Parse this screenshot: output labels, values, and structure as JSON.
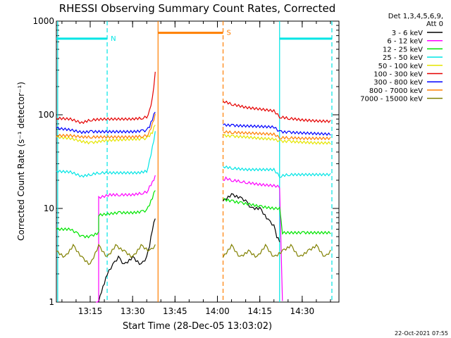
{
  "chart_data": {
    "type": "line",
    "title": "RHESSI Observing Summary Count Rates, Corrected",
    "xlabel": "Start Time (28-Dec-05 13:03:02)",
    "ylabel": "Corrected Count Rate (s⁻¹ detector⁻¹)",
    "y_scale": "log",
    "ylim": [
      1,
      1000
    ],
    "xlim": [
      "13:03:02",
      "14:43:00"
    ],
    "y_tick_labels": [
      "1",
      "10",
      "100",
      "1000"
    ],
    "x_tick_labels": [
      "13:15",
      "13:30",
      "13:45",
      "14:00",
      "14:15",
      "14:30"
    ],
    "legend_position": "right",
    "legend_header": [
      "Det 1,3,4,5,6,9,",
      "Att 0"
    ],
    "footer_date": "22-Oct-2021 07:55",
    "annotations": [
      {
        "label": "N",
        "color": "#00e5e5",
        "time_start": "13:03:02",
        "time_end": "13:21:00",
        "y": 650
      },
      {
        "label": "S",
        "color": "#ff7f00",
        "time_start": "13:39:00",
        "time_end": "14:02:00",
        "y": 750
      },
      {
        "label": "",
        "color": "#00e5e5",
        "time_start": "14:22:00",
        "time_end": "14:40:30",
        "y": 650
      }
    ],
    "vlines": [
      {
        "time": "13:03:30",
        "color": "#00e5e5",
        "style": "solid"
      },
      {
        "time": "13:21:00",
        "color": "#00e5e5",
        "style": "dashed"
      },
      {
        "time": "13:39:00",
        "color": "#ff7f00",
        "style": "solid"
      },
      {
        "time": "14:02:00",
        "color": "#ff7f00",
        "style": "dashed"
      },
      {
        "time": "14:22:00",
        "color": "#00e5e5",
        "style": "solid"
      },
      {
        "time": "14:40:30",
        "color": "#00e5e5",
        "style": "dashed"
      }
    ],
    "gap": {
      "start": "13:39:00",
      "end": "14:02:00"
    },
    "series": [
      {
        "name": "3 - 6 keV",
        "color": "#000000",
        "x": [
          "13:18",
          "13:19",
          "13:20",
          "13:21",
          "13:23",
          "13:25",
          "13:27",
          "13:30",
          "13:33",
          "13:35",
          "13:36",
          "13:37",
          "13:38",
          "14:02",
          "14:05",
          "14:08",
          "14:10",
          "14:12",
          "14:15",
          "14:18",
          "14:20",
          "14:21",
          "14:22"
        ],
        "y": [
          1,
          1.3,
          1.6,
          2,
          2.5,
          3,
          2.5,
          3,
          2.5,
          3,
          4,
          6,
          8,
          12,
          14,
          13,
          12,
          10,
          10,
          7.5,
          6.5,
          5,
          4.5
        ]
      },
      {
        "name": "6 - 12 keV",
        "color": "#ff00ff",
        "x": [
          "13:17",
          "13:18",
          "13:18",
          "13:22",
          "13:25",
          "13:30",
          "13:33",
          "13:35",
          "13:36",
          "13:37",
          "13:38",
          "14:02",
          "14:03",
          "14:05",
          "14:08",
          "14:10",
          "14:15",
          "14:20",
          "14:22",
          "14:23"
        ],
        "y": [
          1,
          1,
          13,
          14,
          14,
          14,
          14.5,
          15,
          17,
          19,
          22,
          20,
          21,
          20,
          19.5,
          19,
          18,
          17.5,
          17,
          1
        ]
      },
      {
        "name": "12 - 25 keV",
        "color": "#00e500",
        "x": [
          "13:03",
          "13:08",
          "13:10",
          "13:12",
          "13:15",
          "13:18",
          "13:18",
          "13:25",
          "13:30",
          "13:33",
          "13:35",
          "13:36",
          "13:37",
          "13:38",
          "14:02",
          "14:05",
          "14:08",
          "14:12",
          "14:15",
          "14:20",
          "14:22",
          "14:23",
          "14:30",
          "14:35",
          "14:40"
        ],
        "y": [
          6,
          6,
          5.5,
          5,
          5,
          5.5,
          8.5,
          9,
          9,
          9.2,
          9.5,
          11,
          13,
          16,
          12.5,
          12,
          11.5,
          11,
          10.5,
          10,
          10,
          5.5,
          5.5,
          5.5,
          5.5
        ]
      },
      {
        "name": "25 - 50 keV",
        "color": "#00e5e5",
        "x": [
          "13:03",
          "13:08",
          "13:12",
          "13:15",
          "13:18",
          "13:22",
          "13:27",
          "13:32",
          "13:35",
          "13:36",
          "13:37",
          "13:38",
          "14:02",
          "14:05",
          "14:10",
          "14:15",
          "14:20",
          "14:22",
          "14:25",
          "14:30",
          "14:35",
          "14:40"
        ],
        "y": [
          25,
          24.5,
          22,
          23,
          24,
          24,
          24,
          24,
          25,
          32,
          45,
          65,
          28,
          27,
          26,
          26,
          26,
          22,
          23,
          23,
          23,
          23
        ]
      },
      {
        "name": "50 - 100 keV",
        "color": "#e5e500",
        "x": [
          "13:03",
          "13:08",
          "13:12",
          "13:15",
          "13:20",
          "13:25",
          "13:30",
          "13:33",
          "13:35",
          "13:36",
          "13:37",
          "13:38",
          "14:02",
          "14:05",
          "14:10",
          "14:15",
          "14:20",
          "14:22",
          "14:25",
          "14:30",
          "14:35",
          "14:40"
        ],
        "y": [
          58,
          56,
          52,
          50,
          53,
          54,
          55,
          55,
          56,
          60,
          65,
          80,
          60,
          59,
          58,
          56,
          55,
          52,
          52,
          51,
          50,
          50
        ]
      },
      {
        "name": "100 - 300 keV",
        "color": "#e50000",
        "x": [
          "13:03",
          "13:08",
          "13:12",
          "13:15",
          "13:20",
          "13:25",
          "13:30",
          "13:33",
          "13:35",
          "13:36",
          "13:37",
          "13:38",
          "14:02",
          "14:05",
          "14:10",
          "14:15",
          "14:20",
          "14:22",
          "14:25",
          "14:30",
          "14:35",
          "14:40"
        ],
        "y": [
          92,
          90,
          82,
          88,
          90,
          90,
          90,
          92,
          95,
          110,
          150,
          280,
          140,
          130,
          120,
          115,
          110,
          95,
          92,
          88,
          86,
          85
        ]
      },
      {
        "name": "300 - 800 keV",
        "color": "#0000ff",
        "x": [
          "13:03",
          "13:08",
          "13:12",
          "13:15",
          "13:20",
          "13:25",
          "13:30",
          "13:33",
          "13:35",
          "13:36",
          "13:37",
          "13:38",
          "14:02",
          "14:05",
          "14:10",
          "14:15",
          "14:20",
          "14:22",
          "14:25",
          "14:30",
          "14:35",
          "14:40"
        ],
        "y": [
          72,
          69,
          65,
          66,
          66,
          66,
          66,
          67,
          68,
          75,
          90,
          110,
          78,
          77,
          76,
          75,
          74,
          66,
          65,
          64,
          63,
          62
        ]
      },
      {
        "name": "800 - 7000 keV",
        "color": "#ff7f00",
        "x": [
          "13:03",
          "13:08",
          "13:12",
          "13:15",
          "13:20",
          "13:25",
          "13:30",
          "13:33",
          "13:35",
          "13:36",
          "13:37",
          "13:38",
          "14:02",
          "14:05",
          "14:10",
          "14:15",
          "14:20",
          "14:22",
          "14:25",
          "14:30",
          "14:35",
          "14:40"
        ],
        "y": [
          60,
          60,
          58,
          58,
          58,
          58,
          58,
          59,
          60,
          66,
          80,
          100,
          66,
          65,
          64,
          63,
          62,
          57,
          57,
          56,
          56,
          56
        ]
      },
      {
        "name": "7000 - 15000 keV",
        "color": "#808000",
        "x": [
          "13:03",
          "13:06",
          "13:09",
          "13:12",
          "13:15",
          "13:18",
          "13:21",
          "13:24",
          "13:27",
          "13:30",
          "13:33",
          "13:36",
          "13:38",
          "14:02",
          "14:05",
          "14:08",
          "14:11",
          "14:14",
          "14:17",
          "14:20",
          "14:23",
          "14:26",
          "14:29",
          "14:32",
          "14:35",
          "14:38",
          "14:40"
        ],
        "y": [
          3.5,
          3,
          4,
          3,
          2.5,
          4,
          3,
          4,
          3.5,
          3,
          4,
          3.5,
          4,
          3,
          4,
          3,
          3.5,
          3,
          4,
          3,
          3.5,
          4,
          3,
          3.5,
          4,
          3,
          3.5
        ]
      }
    ]
  }
}
